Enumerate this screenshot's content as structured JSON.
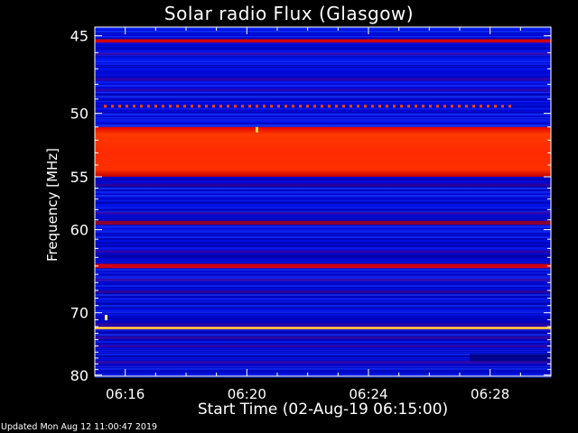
{
  "chart_data": {
    "type": "heatmap",
    "title": "Solar radio Flux (Glasgow)",
    "xlabel": "Start Time (02-Aug-19 06:15:00)",
    "ylabel": "Frequency [MHz]",
    "x_tick_labels": [
      "06:16",
      "06:20",
      "06:24",
      "06:28"
    ],
    "x_tick_minutes": [
      1,
      5,
      9,
      13
    ],
    "x_range_minutes": [
      0,
      15
    ],
    "y_tick_labels": [
      "45",
      "50",
      "55",
      "60",
      "70",
      "80"
    ],
    "y_tick_values": [
      45,
      50,
      55,
      60,
      70,
      80
    ],
    "y_range_mhz": [
      44.5,
      80.2
    ],
    "y_scale": "inverse frequency (decreasing downward)",
    "colormap": [
      "#000060",
      "#0000c8",
      "#1030ff",
      "#d00000",
      "#ff2000",
      "#ff8000",
      "#ffff60"
    ],
    "emission_bands_mhz": [
      {
        "center": 45.3,
        "width": 0.2,
        "level": "red"
      },
      {
        "center": 49.5,
        "width": 0.2,
        "level": "dotted red"
      },
      {
        "center": 53.0,
        "width": 4.0,
        "level": "bright red"
      },
      {
        "center": 59.3,
        "width": 0.4,
        "level": "dark red"
      },
      {
        "center": 64.0,
        "width": 0.5,
        "level": "red"
      },
      {
        "center": 72.2,
        "width": 0.4,
        "level": "yellow"
      }
    ]
  },
  "footer": {
    "updated": "Updated Mon Aug 12 11:00:47 2019"
  }
}
